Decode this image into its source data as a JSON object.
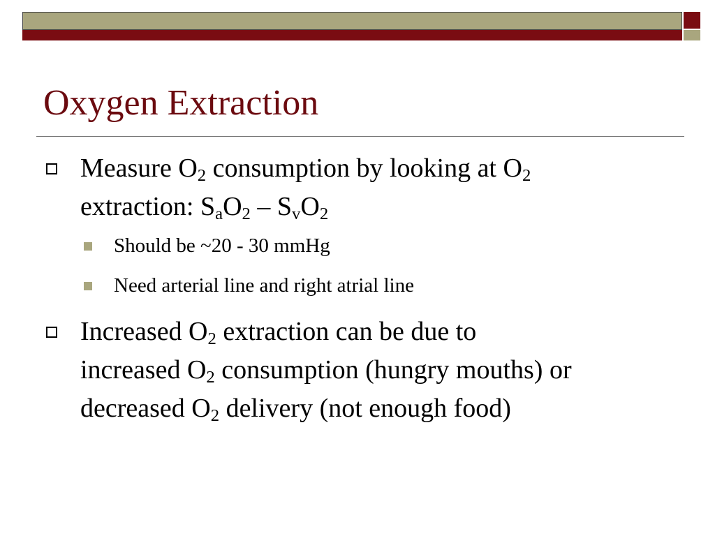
{
  "title": "Oxygen Extraction",
  "bullets": [
    {
      "lines": [
        [
          {
            "text": "Measure O"
          },
          {
            "text": "2",
            "sub": true
          },
          {
            "text": " consumption by looking at O"
          },
          {
            "text": "2",
            "sub": true
          }
        ],
        [
          {
            "text": "extraction:  S"
          },
          {
            "text": "a",
            "sub": true
          },
          {
            "text": "O"
          },
          {
            "text": "2",
            "sub": true
          },
          {
            "text": " – S"
          },
          {
            "text": "v",
            "sub": true
          },
          {
            "text": "O"
          },
          {
            "text": "2",
            "sub": true
          }
        ]
      ],
      "subbullets": [
        "Should be ~20 - 30 mmHg",
        "Need arterial line and right atrial line"
      ]
    },
    {
      "lines": [
        [
          {
            "text": "Increased O"
          },
          {
            "text": "2",
            "sub": true
          },
          {
            "text": " extraction can be due to"
          }
        ],
        [
          {
            "text": "increased O"
          },
          {
            "text": "2",
            "sub": true
          },
          {
            "text": " consumption (hungry mouths) or"
          }
        ],
        [
          {
            "text": "decreased O"
          },
          {
            "text": "2",
            "sub": true
          },
          {
            "text": " delivery (not enough food)"
          }
        ]
      ],
      "subbullets": []
    }
  ]
}
